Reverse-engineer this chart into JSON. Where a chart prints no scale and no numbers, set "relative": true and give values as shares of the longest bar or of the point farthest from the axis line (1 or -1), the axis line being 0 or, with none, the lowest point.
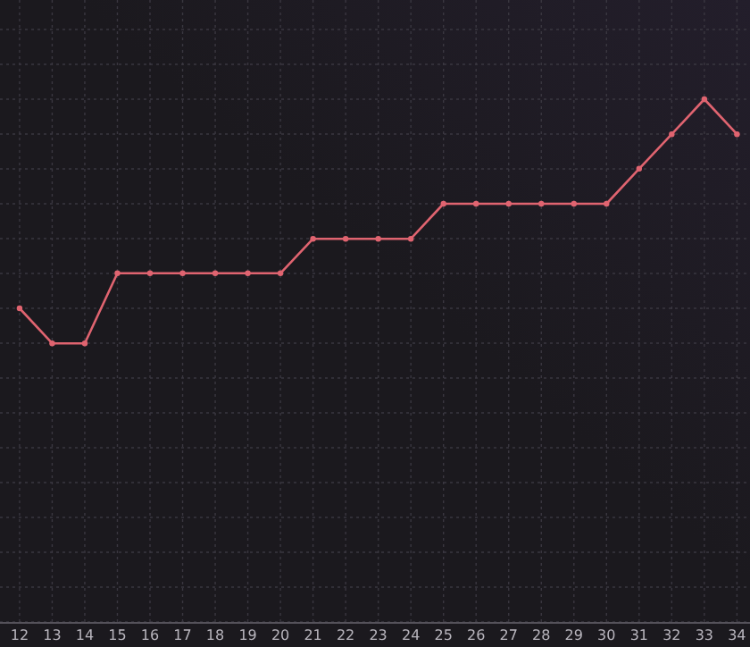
{
  "chart_data": {
    "type": "line",
    "relative": true,
    "x": [
      12,
      13,
      14,
      15,
      16,
      17,
      18,
      19,
      20,
      21,
      22,
      23,
      24,
      25,
      26,
      27,
      28,
      29,
      30,
      31,
      32,
      33,
      34
    ],
    "xlim": [
      11.4,
      34.4
    ],
    "xticks": [
      12,
      13,
      14,
      15,
      16,
      17,
      18,
      19,
      20,
      21,
      22,
      23,
      24,
      25,
      26,
      27,
      28,
      29,
      30,
      31,
      32,
      33,
      34
    ],
    "series": [
      {
        "color": "#e06470",
        "values": [
          0.6,
          0.533,
          0.533,
          0.667,
          0.667,
          0.667,
          0.667,
          0.667,
          0.667,
          0.733,
          0.733,
          0.733,
          0.733,
          0.8,
          0.8,
          0.8,
          0.8,
          0.8,
          0.8,
          0.867,
          0.933,
          1,
          0.933
        ]
      }
    ],
    "grid": true,
    "marker": "circle",
    "line_style": "solid"
  }
}
